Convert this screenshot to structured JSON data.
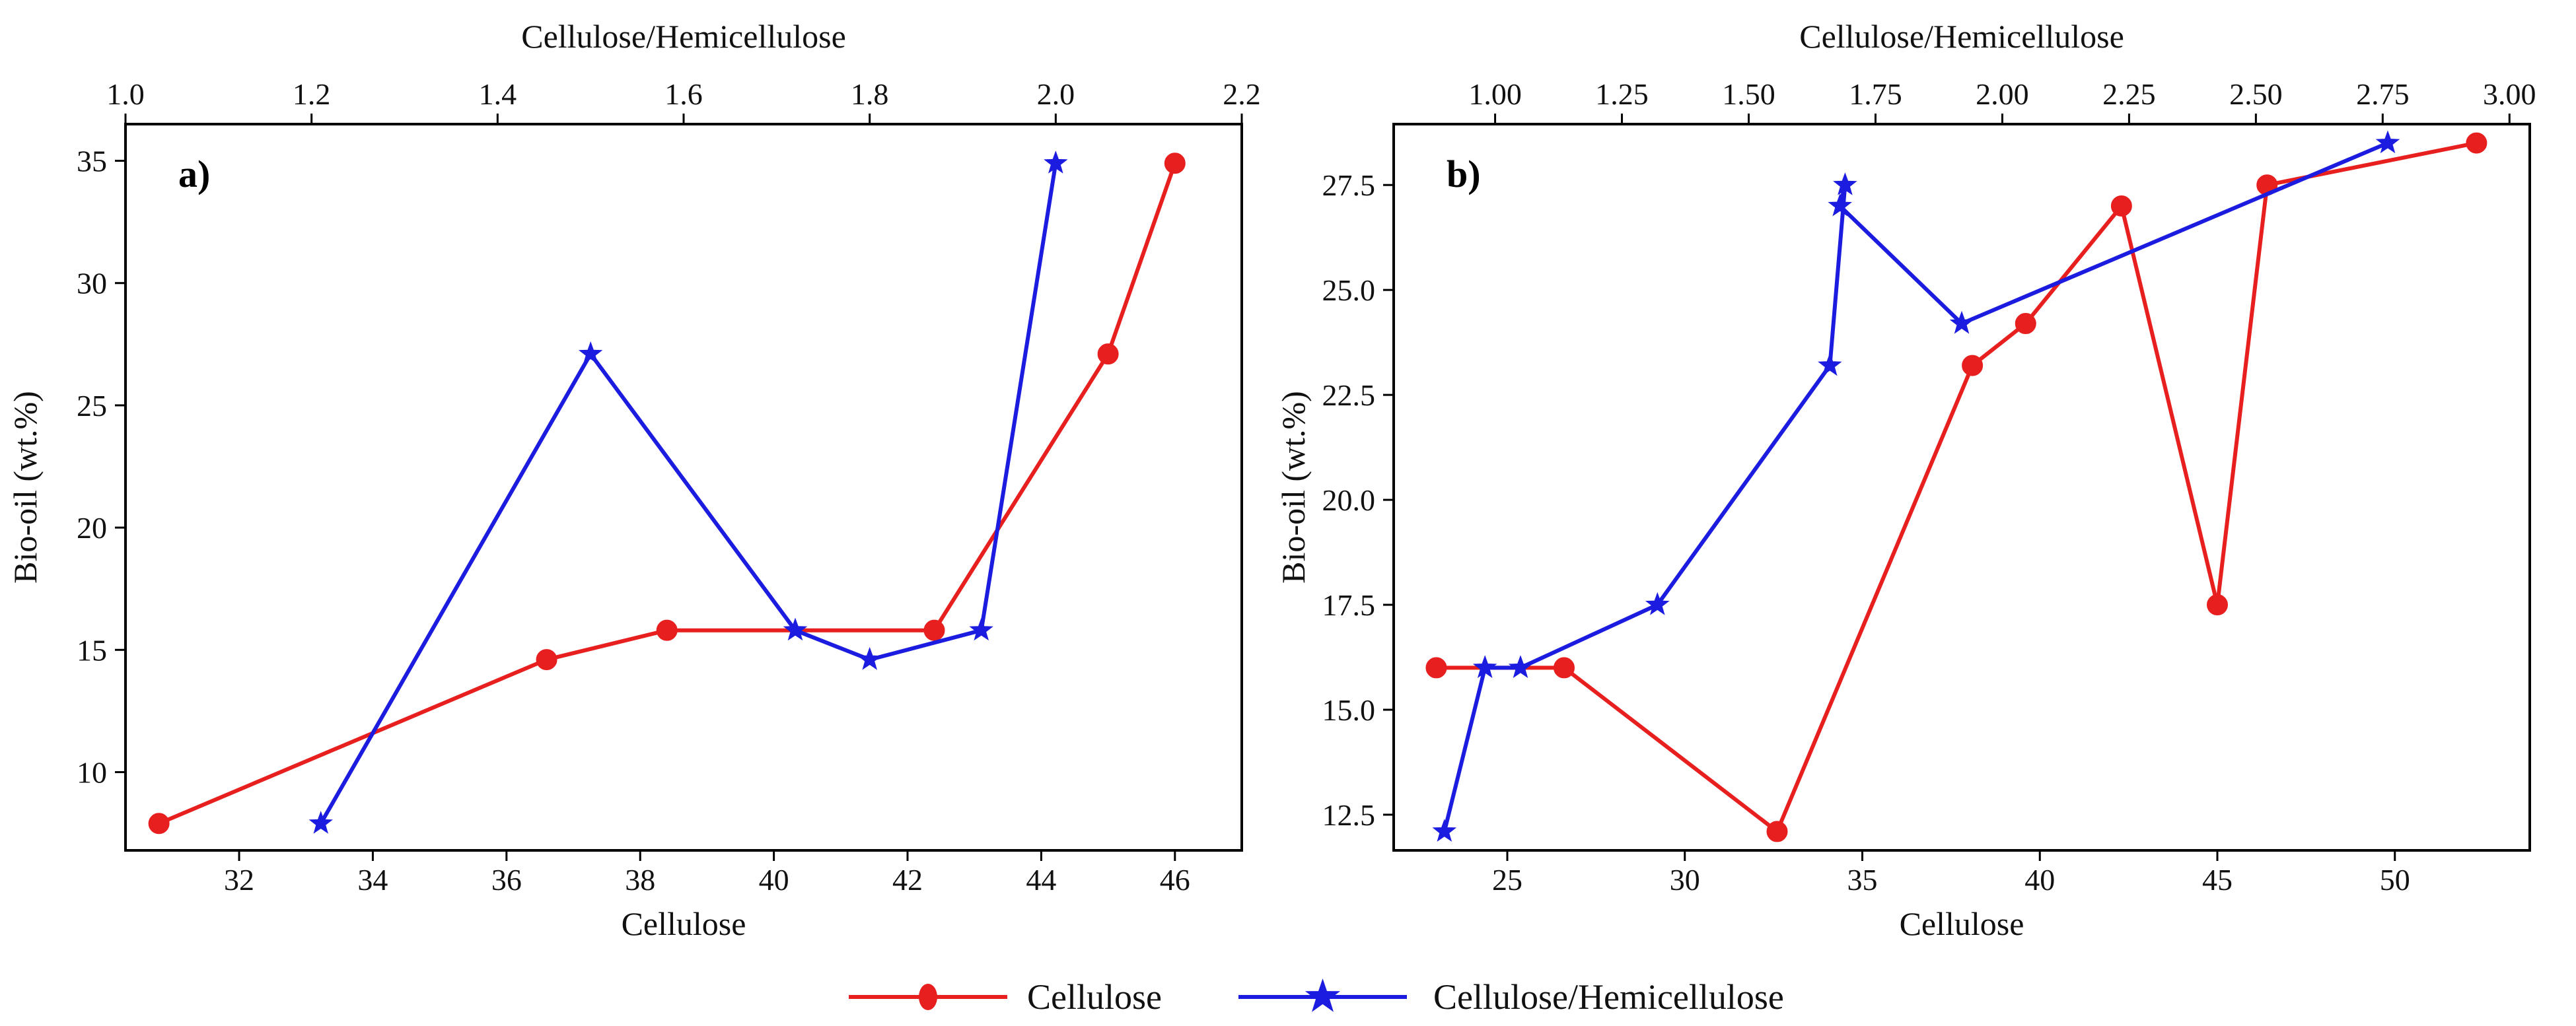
{
  "legend": [
    {
      "label": "Cellulose",
      "color": "#e81f1f",
      "marker": "circle"
    },
    {
      "label": "Cellulose/Hemicellulose",
      "color": "#1c1ce0",
      "marker": "star"
    }
  ],
  "chart_data": [
    {
      "type": "line",
      "panel_label": "a)",
      "xlabel": "Cellulose",
      "x2label": "Cellulose/Hemicellulose",
      "ylabel": "Bio-oil (wt.%)",
      "xlim": [
        30.3,
        47.0
      ],
      "x2lim": [
        1.0,
        2.2
      ],
      "ylim": [
        6.8,
        36.5
      ],
      "xticks": [
        32,
        34,
        36,
        38,
        40,
        42,
        44,
        46
      ],
      "xtick_labels": [
        "32",
        "34",
        "36",
        "38",
        "40",
        "42",
        "44",
        "46"
      ],
      "x2ticks": [
        1.0,
        1.2,
        1.4,
        1.6,
        1.8,
        2.0,
        2.2
      ],
      "x2tick_labels": [
        "1.0",
        "1.2",
        "1.4",
        "1.6",
        "1.8",
        "2.0",
        "2.2"
      ],
      "yticks": [
        10,
        15,
        20,
        25,
        30,
        35
      ],
      "ytick_labels": [
        "10",
        "15",
        "20",
        "25",
        "30",
        "35"
      ],
      "series": [
        {
          "name": "Cellulose",
          "axis": "bottom",
          "color": "#e81f1f",
          "marker": "circle",
          "x": [
            30.8,
            36.6,
            38.4,
            42.4,
            45.0,
            46.0
          ],
          "y": [
            7.9,
            14.6,
            15.8,
            15.8,
            27.1,
            34.9
          ]
        },
        {
          "name": "Cellulose/Hemicellulose",
          "axis": "top",
          "color": "#1c1ce0",
          "marker": "star",
          "x": [
            1.21,
            1.5,
            1.72,
            1.8,
            1.92,
            2.0
          ],
          "y": [
            7.9,
            27.1,
            15.8,
            14.6,
            15.8,
            34.9
          ]
        }
      ]
    },
    {
      "type": "line",
      "panel_label": "b)",
      "xlabel": "Cellulose",
      "x2label": "Cellulose/Hemicellulose",
      "ylabel": "Bio-oil (wt.%)",
      "xlim": [
        21.8,
        53.8
      ],
      "x2lim": [
        0.8,
        3.04
      ],
      "ylim": [
        11.65,
        28.95
      ],
      "xticks": [
        25,
        30,
        35,
        40,
        45,
        50
      ],
      "xtick_labels": [
        "25",
        "30",
        "35",
        "40",
        "45",
        "50"
      ],
      "x2ticks": [
        1.0,
        1.25,
        1.5,
        1.75,
        2.0,
        2.25,
        2.5,
        2.75,
        3.0
      ],
      "x2tick_labels": [
        "1.00",
        "1.25",
        "1.50",
        "1.75",
        "2.00",
        "2.25",
        "2.50",
        "2.75",
        "3.00"
      ],
      "yticks": [
        12.5,
        15.0,
        17.5,
        20.0,
        22.5,
        25.0,
        27.5
      ],
      "ytick_labels": [
        "12.5",
        "15.0",
        "17.5",
        "20.0",
        "22.5",
        "25.0",
        "27.5"
      ],
      "series": [
        {
          "name": "Cellulose",
          "axis": "bottom",
          "color": "#e81f1f",
          "marker": "circle",
          "x": [
            23.0,
            26.6,
            32.6,
            38.1,
            39.6,
            42.3,
            45.0,
            46.4,
            52.3
          ],
          "y": [
            16.0,
            16.0,
            12.1,
            23.2,
            24.2,
            27.0,
            17.5,
            27.5,
            28.5
          ],
          "connect_order": [
            0,
            1,
            2,
            3,
            4,
            5,
            6,
            7,
            8
          ]
        },
        {
          "name": "Cellulose/Hemicellulose",
          "axis": "top",
          "color": "#1c1ce0",
          "marker": "star",
          "x": [
            0.9,
            0.98,
            1.05,
            1.32,
            1.66,
            1.68,
            1.69,
            1.92,
            2.76
          ],
          "y": [
            12.1,
            16.0,
            16.0,
            17.5,
            23.2,
            27.0,
            27.5,
            24.2,
            28.5
          ],
          "connect_order": [
            0,
            1,
            2,
            3,
            4,
            6,
            5,
            7,
            8
          ]
        }
      ]
    }
  ]
}
